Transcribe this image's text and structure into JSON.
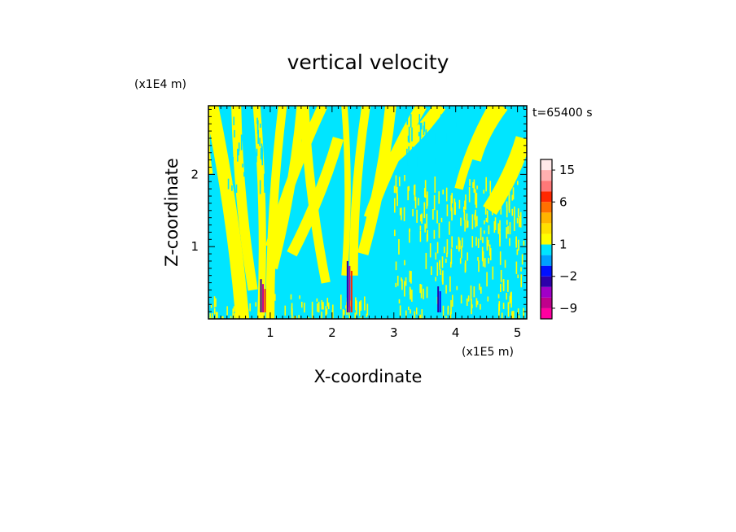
{
  "chart_data": {
    "type": "heatmap",
    "title": "vertical velocity",
    "xlabel": "X-coordinate",
    "ylabel": "Z-coordinate",
    "x_unit": "(x1E5 m)",
    "y_unit": "(x1E4 m)",
    "time_label": "t=65400 s",
    "xlim": [
      0,
      5.15
    ],
    "ylim": [
      0,
      2.95
    ],
    "x_ticks": [
      1,
      2,
      3,
      4,
      5
    ],
    "y_ticks": [
      1,
      2
    ],
    "colorbar": {
      "levels": [
        -12,
        -9,
        -6,
        -4,
        -2,
        -1,
        0,
        1,
        2,
        3,
        4,
        6,
        9,
        12,
        15,
        20
      ],
      "colors": [
        "#ff00a0",
        "#c0008c",
        "#a000c8",
        "#2d00aa",
        "#0010ff",
        "#00a0ff",
        "#00e5ff",
        "#ffff00",
        "#ffe000",
        "#ffb400",
        "#ff7000",
        "#ff2800",
        "#ff7878",
        "#ffb0b0",
        "#ffe8e8"
      ],
      "labels": [
        {
          "value": -9,
          "text": "−9"
        },
        {
          "value": -2,
          "text": "−2"
        },
        {
          "value": 1,
          "text": "1"
        },
        {
          "value": 6,
          "text": "6"
        },
        {
          "value": 15,
          "text": "15"
        }
      ]
    },
    "field": {
      "background_color": "#00e5ff",
      "positive_color": "#ffff00",
      "yellow_bands": [
        {
          "x_bottom": 0.0,
          "z_bottom": 2.0,
          "x_top": 0.0,
          "z_top": 2.95,
          "width": 0.15
        },
        {
          "x_bottom": 0.55,
          "z_bottom": 0.0,
          "x_top": 0.05,
          "z_top": 2.95,
          "width": 0.22
        },
        {
          "x_bottom": 0.72,
          "z_bottom": 0.4,
          "x_top": 0.45,
          "z_top": 2.95,
          "width": 0.16
        },
        {
          "x_bottom": 0.85,
          "z_bottom": 0.0,
          "x_top": 0.78,
          "z_top": 2.95,
          "width": 0.12
        },
        {
          "x_bottom": 1.0,
          "z_bottom": 0.0,
          "x_top": 1.2,
          "z_top": 2.95,
          "width": 0.14
        },
        {
          "x_bottom": 1.05,
          "z_bottom": 0.7,
          "x_top": 1.5,
          "z_top": 2.95,
          "width": 0.14
        },
        {
          "x_bottom": 1.0,
          "z_bottom": 1.0,
          "x_top": 1.85,
          "z_top": 2.95,
          "width": 0.16
        },
        {
          "x_bottom": 1.35,
          "z_bottom": 0.9,
          "x_top": 2.1,
          "z_top": 2.5,
          "width": 0.18
        },
        {
          "x_bottom": 1.9,
          "z_bottom": 0.5,
          "x_top": 1.55,
          "z_top": 2.95,
          "width": 0.15
        },
        {
          "x_bottom": 2.2,
          "z_bottom": 0.6,
          "x_top": 2.2,
          "z_top": 2.95,
          "width": 0.1
        },
        {
          "x_bottom": 2.35,
          "z_bottom": 0.6,
          "x_top": 2.55,
          "z_top": 2.95,
          "width": 0.14
        },
        {
          "x_bottom": 2.5,
          "z_bottom": 0.9,
          "x_top": 2.95,
          "z_top": 2.95,
          "width": 0.18
        },
        {
          "x_bottom": 2.6,
          "z_bottom": 1.4,
          "x_top": 3.45,
          "z_top": 2.95,
          "width": 0.18
        },
        {
          "x_bottom": 2.95,
          "z_bottom": 2.2,
          "x_top": 3.75,
          "z_top": 2.95,
          "width": 0.2
        },
        {
          "x_bottom": 4.3,
          "z_bottom": 2.2,
          "x_top": 4.75,
          "z_top": 2.95,
          "width": 0.22
        },
        {
          "x_bottom": 4.55,
          "z_bottom": 1.5,
          "x_top": 5.1,
          "z_top": 2.5,
          "width": 0.26
        },
        {
          "x_bottom": 4.05,
          "z_bottom": 1.8,
          "x_top": 4.6,
          "z_top": 2.95,
          "width": 0.14
        }
      ],
      "plumes": [
        {
          "x": 0.87,
          "z_top": 0.55,
          "colors": [
            "#2d00aa",
            "#c0008c",
            "#ff2800"
          ]
        },
        {
          "x": 2.27,
          "z_top": 0.8,
          "colors": [
            "#2d00aa",
            "#c0008c",
            "#ff2800"
          ]
        },
        {
          "x": 3.72,
          "z_top": 0.45,
          "colors": [
            "#2d00aa",
            "#0010ff"
          ]
        }
      ]
    }
  }
}
